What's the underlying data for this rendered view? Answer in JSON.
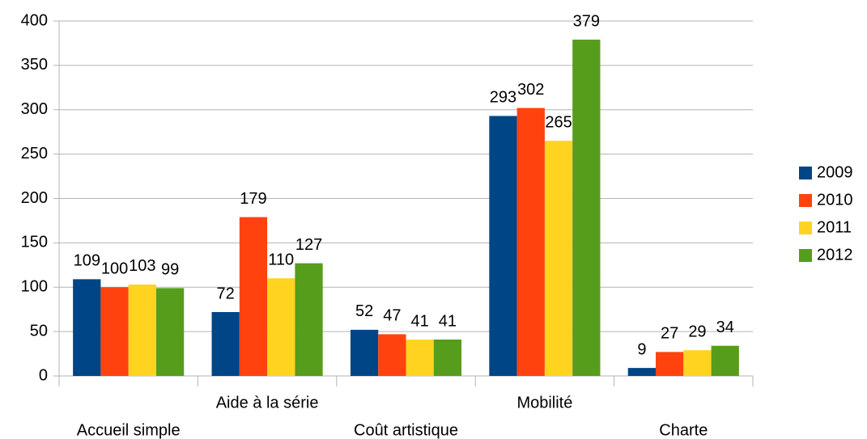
{
  "chart_data": {
    "type": "bar",
    "categories": [
      "Accueil simple",
      "Aide à la série",
      "Coût artistique",
      "Mobilité",
      "Charte"
    ],
    "series": [
      {
        "name": "2009",
        "color": "#004586",
        "values": [
          109,
          72,
          52,
          293,
          9
        ]
      },
      {
        "name": "2010",
        "color": "#ff420e",
        "values": [
          100,
          179,
          47,
          302,
          27
        ]
      },
      {
        "name": "2011",
        "color": "#ffd320",
        "values": [
          103,
          110,
          41,
          265,
          29
        ]
      },
      {
        "name": "2012",
        "color": "#579d1c",
        "values": [
          99,
          127,
          41,
          379,
          34
        ]
      }
    ],
    "ylim": [
      0,
      400
    ],
    "yticks": [
      0,
      50,
      100,
      150,
      200,
      250,
      300,
      350,
      400
    ],
    "grid": true,
    "legend": "right"
  }
}
